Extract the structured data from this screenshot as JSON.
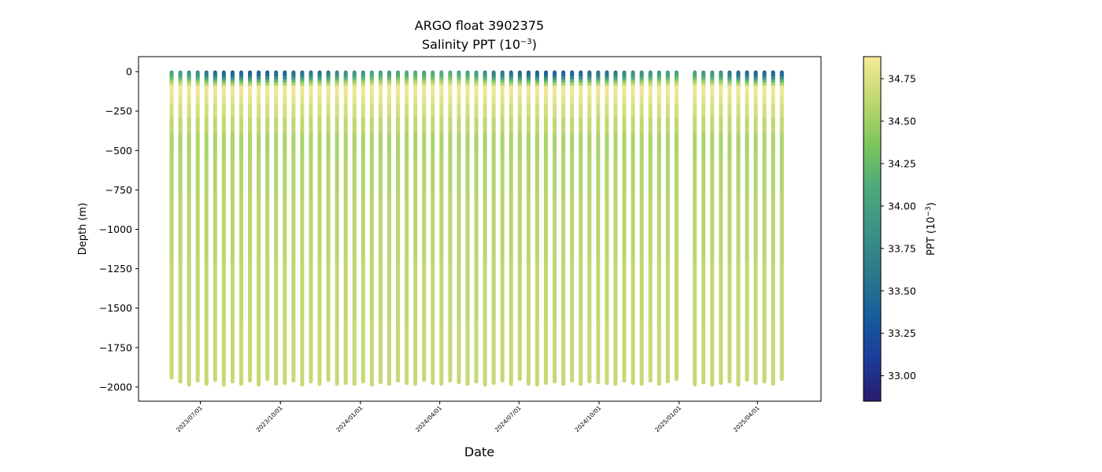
{
  "chart_data": {
    "type": "scatter",
    "title": "ARGO float 3902375",
    "subtitle_prefix": "Salinity PPT (10",
    "subtitle_exp": "−3",
    "subtitle_suffix": ")",
    "xlabel": "Date",
    "ylabel": "Depth (m)",
    "colorbar_label_prefix": "PPT (10",
    "colorbar_label_exp": "−3",
    "colorbar_label_suffix": ")",
    "ylim": [
      -2090,
      95
    ],
    "xlim": [
      "2023-04-21",
      "2025-06-13"
    ],
    "y_ticks": [
      0,
      -250,
      -500,
      -750,
      -1000,
      -1250,
      -1500,
      -1750,
      -2000
    ],
    "y_tick_labels": [
      "0",
      "−250",
      "−500",
      "−750",
      "−1000",
      "−1250",
      "−1500",
      "−1750",
      "−2000"
    ],
    "x_ticks": [
      "2023-07-01",
      "2023-10-01",
      "2024-01-01",
      "2024-04-01",
      "2024-07-01",
      "2024-10-01",
      "2025-01-01",
      "2025-04-01"
    ],
    "x_tick_labels": [
      "2023/07/01",
      "2023/10/01",
      "2024/01/01",
      "2024/04/01",
      "2024/07/01",
      "2024/10/01",
      "2025/01/01",
      "2025/04/01"
    ],
    "colorbar": {
      "min": 32.85,
      "max": 34.88,
      "ticks": [
        33.0,
        33.25,
        33.5,
        33.75,
        34.0,
        34.25,
        34.5,
        34.75
      ],
      "tick_labels": [
        "33.00",
        "33.25",
        "33.50",
        "33.75",
        "34.00",
        "34.25",
        "34.50",
        "34.75"
      ],
      "colormap": "haline",
      "color_stops": [
        "#2a1b6b",
        "#1b3d9a",
        "#175e9c",
        "#2d7a8a",
        "#3c9385",
        "#4eab7a",
        "#7ec65a",
        "#c0d870",
        "#f6ea98"
      ]
    },
    "profile_dates_first": "2023-05-29",
    "profile_interval_days": 10,
    "profile_gaps_after_index": [
      58
    ],
    "profile_gap_days": 21,
    "profile_max_depths": [
      1940,
      1965,
      1985,
      1960,
      1980,
      1955,
      1985,
      1965,
      1980,
      1960,
      1985,
      1950,
      1980,
      1975,
      1960,
      1985,
      1965,
      1980,
      1955,
      1980,
      1975,
      1980,
      1965,
      1985,
      1970,
      1980,
      1960,
      1975,
      1980,
      1955,
      1975,
      1980,
      1960,
      1970,
      1980,
      1965,
      1985,
      1975,
      1960,
      1980,
      1950,
      1980,
      1985,
      1975,
      1965,
      1980,
      1960,
      1980,
      1965,
      1970,
      1975,
      1980,
      1960,
      1975,
      1980,
      1960,
      1980,
      1965,
      1950,
      1985,
      1970,
      1985,
      1975,
      1965,
      1985,
      1955,
      1975,
      1965,
      1980,
      1950
    ],
    "profile_surface_salinity": [
      34.0,
      33.9,
      33.85,
      33.8,
      33.5,
      33.4,
      33.35,
      33.3,
      33.35,
      33.3,
      33.3,
      33.3,
      33.35,
      33.3,
      33.4,
      33.45,
      33.5,
      33.45,
      33.6,
      33.7,
      33.8,
      33.85,
      33.85,
      34.0,
      34.0,
      33.95,
      34.05,
      34.05,
      34.1,
      34.0,
      34.05,
      34.05,
      34.1,
      34.05,
      34.0,
      33.9,
      33.8,
      33.6,
      33.5,
      33.45,
      33.4,
      33.35,
      33.3,
      33.3,
      33.3,
      33.3,
      33.3,
      33.35,
      33.4,
      33.5,
      33.45,
      33.55,
      33.7,
      33.75,
      33.8,
      33.85,
      33.9,
      33.95,
      34.0
    ],
    "profile_min_depths": [
      5,
      5,
      5,
      5,
      5,
      5,
      5,
      5,
      5,
      5,
      5,
      5,
      5,
      5,
      5,
      5,
      5,
      5,
      5,
      5,
      5,
      5,
      5,
      5,
      5,
      5,
      5,
      5,
      5,
      5,
      5,
      5,
      5,
      5,
      5,
      5,
      5,
      5,
      5,
      5,
      5,
      5,
      5,
      5,
      5,
      5,
      5,
      5,
      5,
      5,
      5,
      5,
      5,
      5,
      5,
      5,
      5,
      5,
      5,
      5,
      5,
      5,
      5,
      5,
      5,
      5,
      5,
      5,
      5,
      5
    ],
    "salinity_profile": {
      "depths": [
        0,
        40,
        70,
        110,
        200,
        320,
        450,
        700,
        1200,
        2000
      ],
      "surface_blend": [
        1.0,
        0.85,
        0.4,
        0.0,
        0,
        0,
        0,
        0,
        0,
        0
      ],
      "deep_values": [
        34.8,
        34.82,
        34.84,
        34.86,
        34.78,
        34.65,
        34.55,
        34.58,
        34.62,
        34.66
      ]
    }
  }
}
